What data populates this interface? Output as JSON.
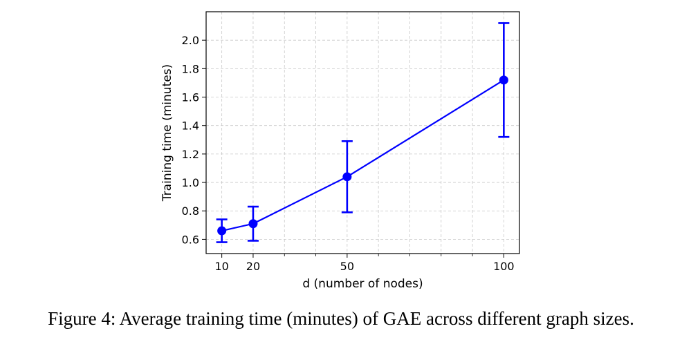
{
  "chart_data": {
    "type": "line",
    "x": [
      10,
      20,
      50,
      100
    ],
    "series": [
      {
        "values": [
          0.66,
          0.71,
          1.04,
          1.72
        ],
        "error": [
          0.08,
          0.12,
          0.25,
          0.4
        ],
        "color": "#0000ff",
        "marker": "circle"
      }
    ],
    "xlabel": "d (number of nodes)",
    "ylabel": "Training time (minutes)",
    "xticks": [
      10,
      20,
      50,
      100
    ],
    "xtick_labels": [
      "10",
      "20",
      "50",
      "100"
    ],
    "xminor_ticks": [
      30,
      40,
      60,
      70,
      80,
      90
    ],
    "yticks": [
      0.6,
      0.8,
      1.0,
      1.2,
      1.4,
      1.6,
      1.8,
      2.0
    ],
    "ytick_labels": [
      "0.6",
      "0.8",
      "1.0",
      "1.2",
      "1.4",
      "1.6",
      "1.8",
      "2.0"
    ],
    "xlim": [
      5,
      105
    ],
    "ylim": [
      0.5,
      2.2
    ],
    "grid": true
  },
  "caption": "Figure 4: Average training time (minutes) of GAE across different graph sizes."
}
